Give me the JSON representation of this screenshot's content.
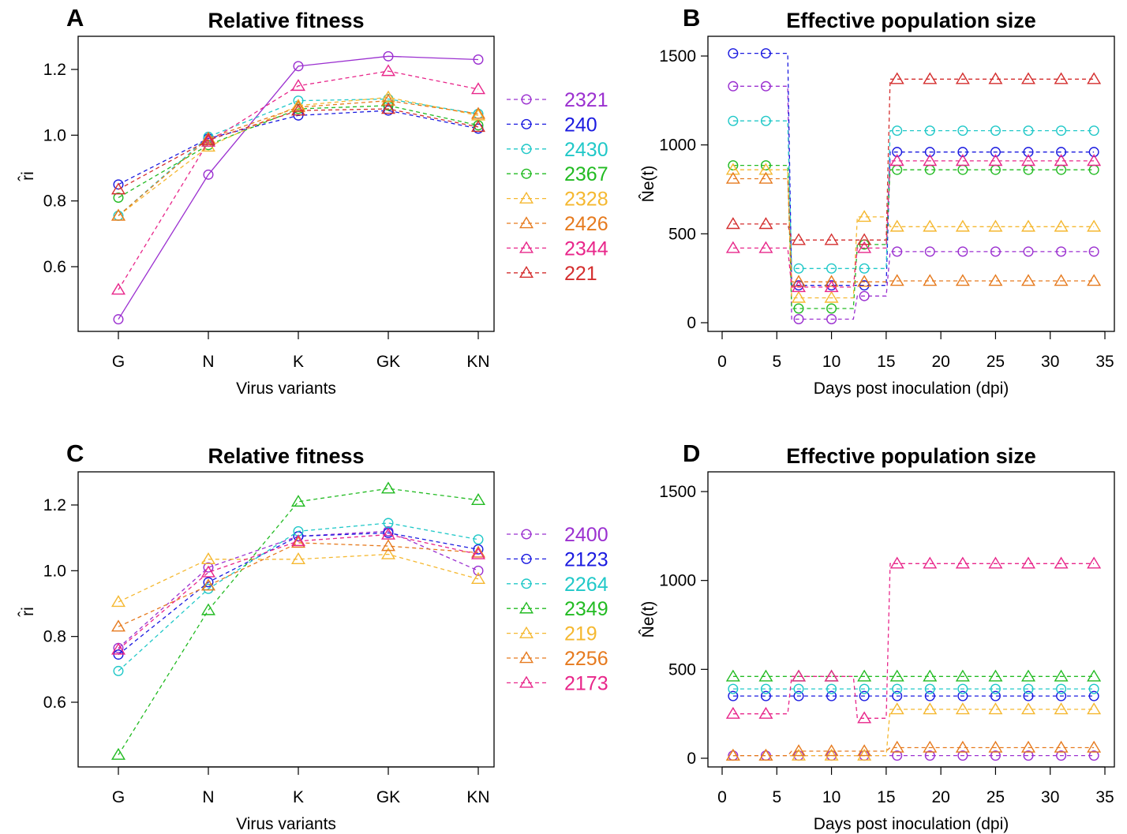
{
  "chart_data": [
    {
      "type": "line",
      "panel_letter": "A",
      "title": "Relative fitness",
      "xlabel": "Virus variants",
      "ylabel": "r̂i",
      "categories": [
        "G",
        "N",
        "K",
        "GK",
        "KN"
      ],
      "yticks": [
        "0.6",
        "0.8",
        "1.0",
        "1.2"
      ],
      "ylim": [
        0.43,
        1.27
      ],
      "series": [
        {
          "name": "2321",
          "color": "#9B30D0",
          "marker": "circle",
          "values": [
            0.44,
            0.88,
            1.21,
            1.24,
            1.23
          ]
        },
        {
          "name": "240",
          "color": "#1A1AE0",
          "marker": "circle",
          "values": [
            0.85,
            0.99,
            1.06,
            1.075,
            1.02
          ]
        },
        {
          "name": "2430",
          "color": "#20C8C8",
          "marker": "circle",
          "values": [
            0.755,
            0.995,
            1.105,
            1.11,
            1.065
          ]
        },
        {
          "name": "2367",
          "color": "#22BB22",
          "marker": "circle",
          "values": [
            0.81,
            0.97,
            1.08,
            1.09,
            1.03
          ]
        },
        {
          "name": "2328",
          "color": "#F5B830",
          "marker": "triangle",
          "values": [
            0.755,
            0.965,
            1.09,
            1.115,
            1.06
          ]
        },
        {
          "name": "2426",
          "color": "#E67A1E",
          "marker": "triangle",
          "values": [
            0.755,
            0.99,
            1.085,
            1.105,
            1.065
          ]
        },
        {
          "name": "2344",
          "color": "#E8268A",
          "marker": "triangle",
          "values": [
            0.53,
            0.98,
            1.15,
            1.195,
            1.14
          ]
        },
        {
          "name": "221",
          "color": "#D42E2E",
          "marker": "triangle",
          "values": [
            0.835,
            0.985,
            1.075,
            1.08,
            1.025
          ]
        }
      ]
    },
    {
      "type": "line",
      "panel_letter": "B",
      "title": "Effective population size",
      "xlabel": "Days post inoculation (dpi)",
      "ylabel": "N̂e(t)",
      "x": [
        1,
        4,
        7,
        10,
        13,
        16,
        19,
        22,
        25,
        28,
        31,
        34
      ],
      "xticks": [
        "0",
        "5",
        "10",
        "15",
        "20",
        "25",
        "30",
        "35"
      ],
      "yticks": [
        "0",
        "500",
        "1000",
        "1500"
      ],
      "xlim": [
        0,
        35
      ],
      "ylim": [
        0,
        1550
      ],
      "series": [
        {
          "name": "2321",
          "color": "#9B30D0",
          "marker": "circle",
          "values": [
            1330,
            1330,
            20,
            20,
            150,
            400,
            400,
            400,
            400,
            400,
            400,
            400
          ]
        },
        {
          "name": "240",
          "color": "#1A1AE0",
          "marker": "circle",
          "values": [
            1515,
            1515,
            210,
            210,
            210,
            960,
            960,
            960,
            960,
            960,
            960,
            960
          ]
        },
        {
          "name": "2430",
          "color": "#20C8C8",
          "marker": "circle",
          "values": [
            1135,
            1135,
            305,
            305,
            305,
            1080,
            1080,
            1080,
            1080,
            1080,
            1080,
            1080
          ]
        },
        {
          "name": "2367",
          "color": "#22BB22",
          "marker": "circle",
          "values": [
            885,
            885,
            80,
            80,
            440,
            860,
            860,
            860,
            860,
            860,
            860,
            860
          ]
        },
        {
          "name": "2328",
          "color": "#F5B830",
          "marker": "triangle",
          "values": [
            860,
            860,
            140,
            140,
            595,
            540,
            540,
            540,
            540,
            540,
            540,
            540
          ]
        },
        {
          "name": "2426",
          "color": "#E67A1E",
          "marker": "triangle",
          "values": [
            810,
            810,
            230,
            230,
            230,
            235,
            235,
            235,
            235,
            235,
            235,
            235
          ]
        },
        {
          "name": "2344",
          "color": "#E8268A",
          "marker": "triangle",
          "values": [
            420,
            420,
            200,
            200,
            420,
            910,
            910,
            910,
            910,
            910,
            910,
            910
          ]
        },
        {
          "name": "221",
          "color": "#D42E2E",
          "marker": "triangle",
          "values": [
            555,
            555,
            465,
            465,
            465,
            1370,
            1370,
            1370,
            1370,
            1370,
            1370,
            1370
          ]
        }
      ]
    },
    {
      "type": "line",
      "panel_letter": "C",
      "title": "Relative fitness",
      "xlabel": "Virus variants",
      "ylabel": "r̂i",
      "categories": [
        "G",
        "N",
        "K",
        "GK",
        "KN"
      ],
      "yticks": [
        "0.6",
        "0.8",
        "1.0",
        "1.2"
      ],
      "ylim": [
        0.43,
        1.27
      ],
      "series": [
        {
          "name": "2400",
          "color": "#9B30D0",
          "marker": "circle",
          "values": [
            0.765,
            1.01,
            1.105,
            1.12,
            1.0
          ]
        },
        {
          "name": "2123",
          "color": "#1A1AE0",
          "marker": "circle",
          "values": [
            0.745,
            0.965,
            1.105,
            1.115,
            1.065
          ]
        },
        {
          "name": "2264",
          "color": "#20C8C8",
          "marker": "circle",
          "values": [
            0.695,
            0.945,
            1.12,
            1.145,
            1.095
          ]
        },
        {
          "name": "2349",
          "color": "#22BB22",
          "marker": "triangle",
          "values": [
            0.44,
            0.88,
            1.21,
            1.25,
            1.215
          ]
        },
        {
          "name": "219",
          "color": "#F5B830",
          "marker": "triangle",
          "values": [
            0.905,
            1.035,
            1.035,
            1.05,
            0.975
          ]
        },
        {
          "name": "2256",
          "color": "#E67A1E",
          "marker": "triangle",
          "values": [
            0.83,
            0.955,
            1.085,
            1.075,
            1.055
          ]
        },
        {
          "name": "2173",
          "color": "#E8268A",
          "marker": "triangle",
          "values": [
            0.76,
            0.995,
            1.09,
            1.11,
            1.05
          ]
        }
      ]
    },
    {
      "type": "line",
      "panel_letter": "D",
      "title": "Effective population size",
      "xlabel": "Days post inoculation (dpi)",
      "ylabel": "N̂e(t)",
      "x": [
        1,
        4,
        7,
        10,
        13,
        16,
        19,
        22,
        25,
        28,
        31,
        34
      ],
      "xticks": [
        "0",
        "5",
        "10",
        "15",
        "20",
        "25",
        "30",
        "35"
      ],
      "yticks": [
        "0",
        "500",
        "1000",
        "1500"
      ],
      "xlim": [
        0,
        35
      ],
      "ylim": [
        0,
        1550
      ],
      "series": [
        {
          "name": "2400",
          "color": "#9B30D0",
          "marker": "circle",
          "values": [
            15,
            15,
            15,
            15,
            15,
            15,
            15,
            15,
            15,
            15,
            15,
            15
          ]
        },
        {
          "name": "2123",
          "color": "#1A1AE0",
          "marker": "circle",
          "values": [
            350,
            350,
            350,
            350,
            350,
            350,
            350,
            350,
            350,
            350,
            350,
            350
          ]
        },
        {
          "name": "2264",
          "color": "#20C8C8",
          "marker": "circle",
          "values": [
            390,
            390,
            390,
            390,
            390,
            390,
            390,
            390,
            390,
            390,
            390,
            390
          ]
        },
        {
          "name": "2349",
          "color": "#22BB22",
          "marker": "triangle",
          "values": [
            460,
            460,
            460,
            460,
            460,
            460,
            460,
            460,
            460,
            460,
            460,
            460
          ]
        },
        {
          "name": "219",
          "color": "#F5B830",
          "marker": "triangle",
          "values": [
            15,
            15,
            15,
            15,
            15,
            275,
            275,
            275,
            275,
            275,
            275,
            275
          ]
        },
        {
          "name": "2256",
          "color": "#E67A1E",
          "marker": "triangle",
          "values": [
            15,
            15,
            40,
            40,
            40,
            60,
            60,
            60,
            60,
            60,
            60,
            60
          ]
        },
        {
          "name": "2173",
          "color": "#E8268A",
          "marker": "triangle",
          "values": [
            250,
            250,
            460,
            460,
            225,
            1095,
            1095,
            1095,
            1095,
            1095,
            1095,
            1095
          ]
        }
      ]
    }
  ]
}
